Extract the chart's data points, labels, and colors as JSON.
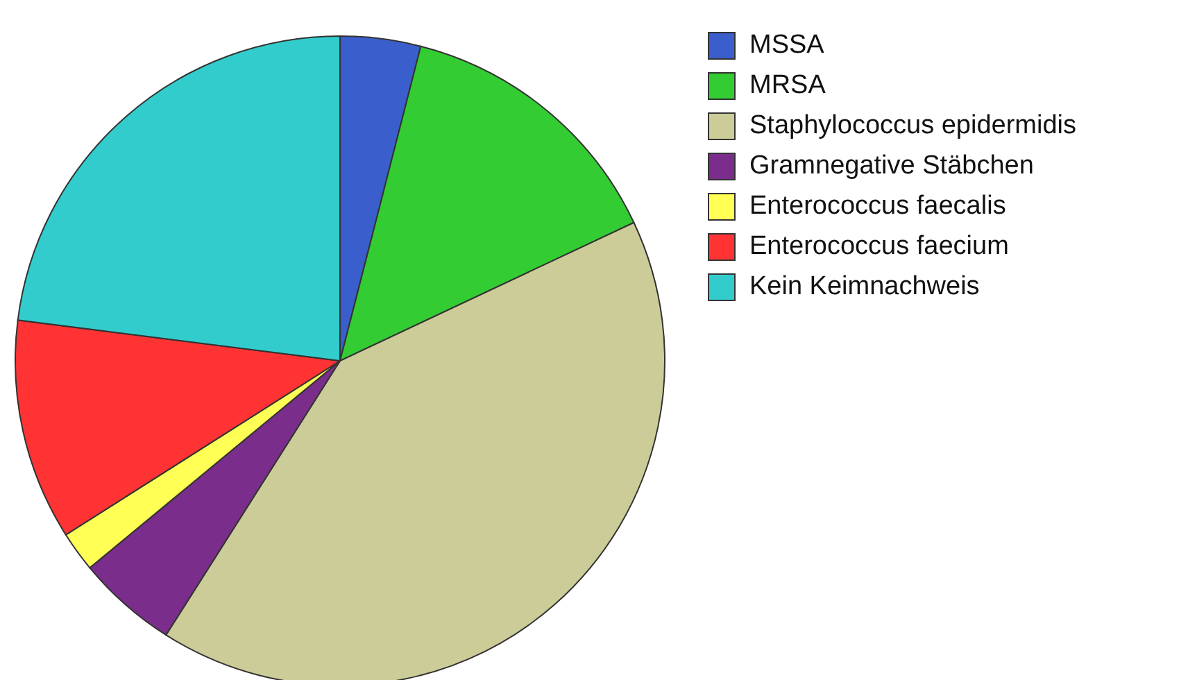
{
  "chart_data": {
    "type": "pie",
    "categories": [
      "MSSA",
      "MRSA",
      "Staphylococcus epidermidis",
      "Gramnegative Stäbchen",
      "Enterococcus faecalis",
      "Enterococcus faecium",
      "Kein Keimnachweis"
    ],
    "values": [
      4,
      14,
      41,
      5,
      2,
      11,
      23
    ],
    "colors": [
      "#3a5fcd",
      "#33cc33",
      "#cccc99",
      "#7b2d8b",
      "#ffff55",
      "#ff3333",
      "#33cccc"
    ],
    "legend": "top right"
  }
}
